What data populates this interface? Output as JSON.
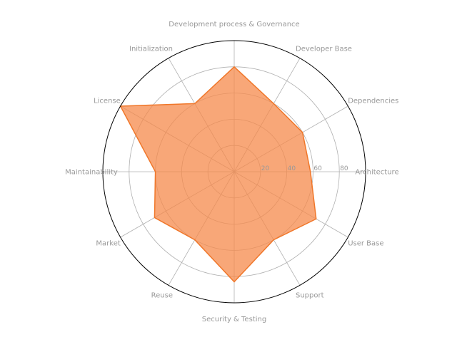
{
  "chart_data": {
    "type": "radar",
    "categories": [
      "Architecture",
      "Dependencies",
      "Developer Base",
      "Development process & Governance",
      "Initialization",
      "License",
      "Maintainability",
      "Market",
      "Reuse",
      "Security & Testing",
      "Support",
      "User Base"
    ],
    "series": [
      {
        "values": [
          58,
          60,
          60,
          80,
          60,
          100,
          60,
          70,
          60,
          84,
          60,
          72
        ],
        "line_color": "#f0772a",
        "fill_color": "#f58a4b"
      }
    ],
    "rlim": [
      0,
      100
    ],
    "r_ticks": [
      20,
      40,
      60,
      80
    ],
    "r_tick_labels": [
      "20",
      "40",
      "60",
      "80"
    ],
    "grid": true
  }
}
